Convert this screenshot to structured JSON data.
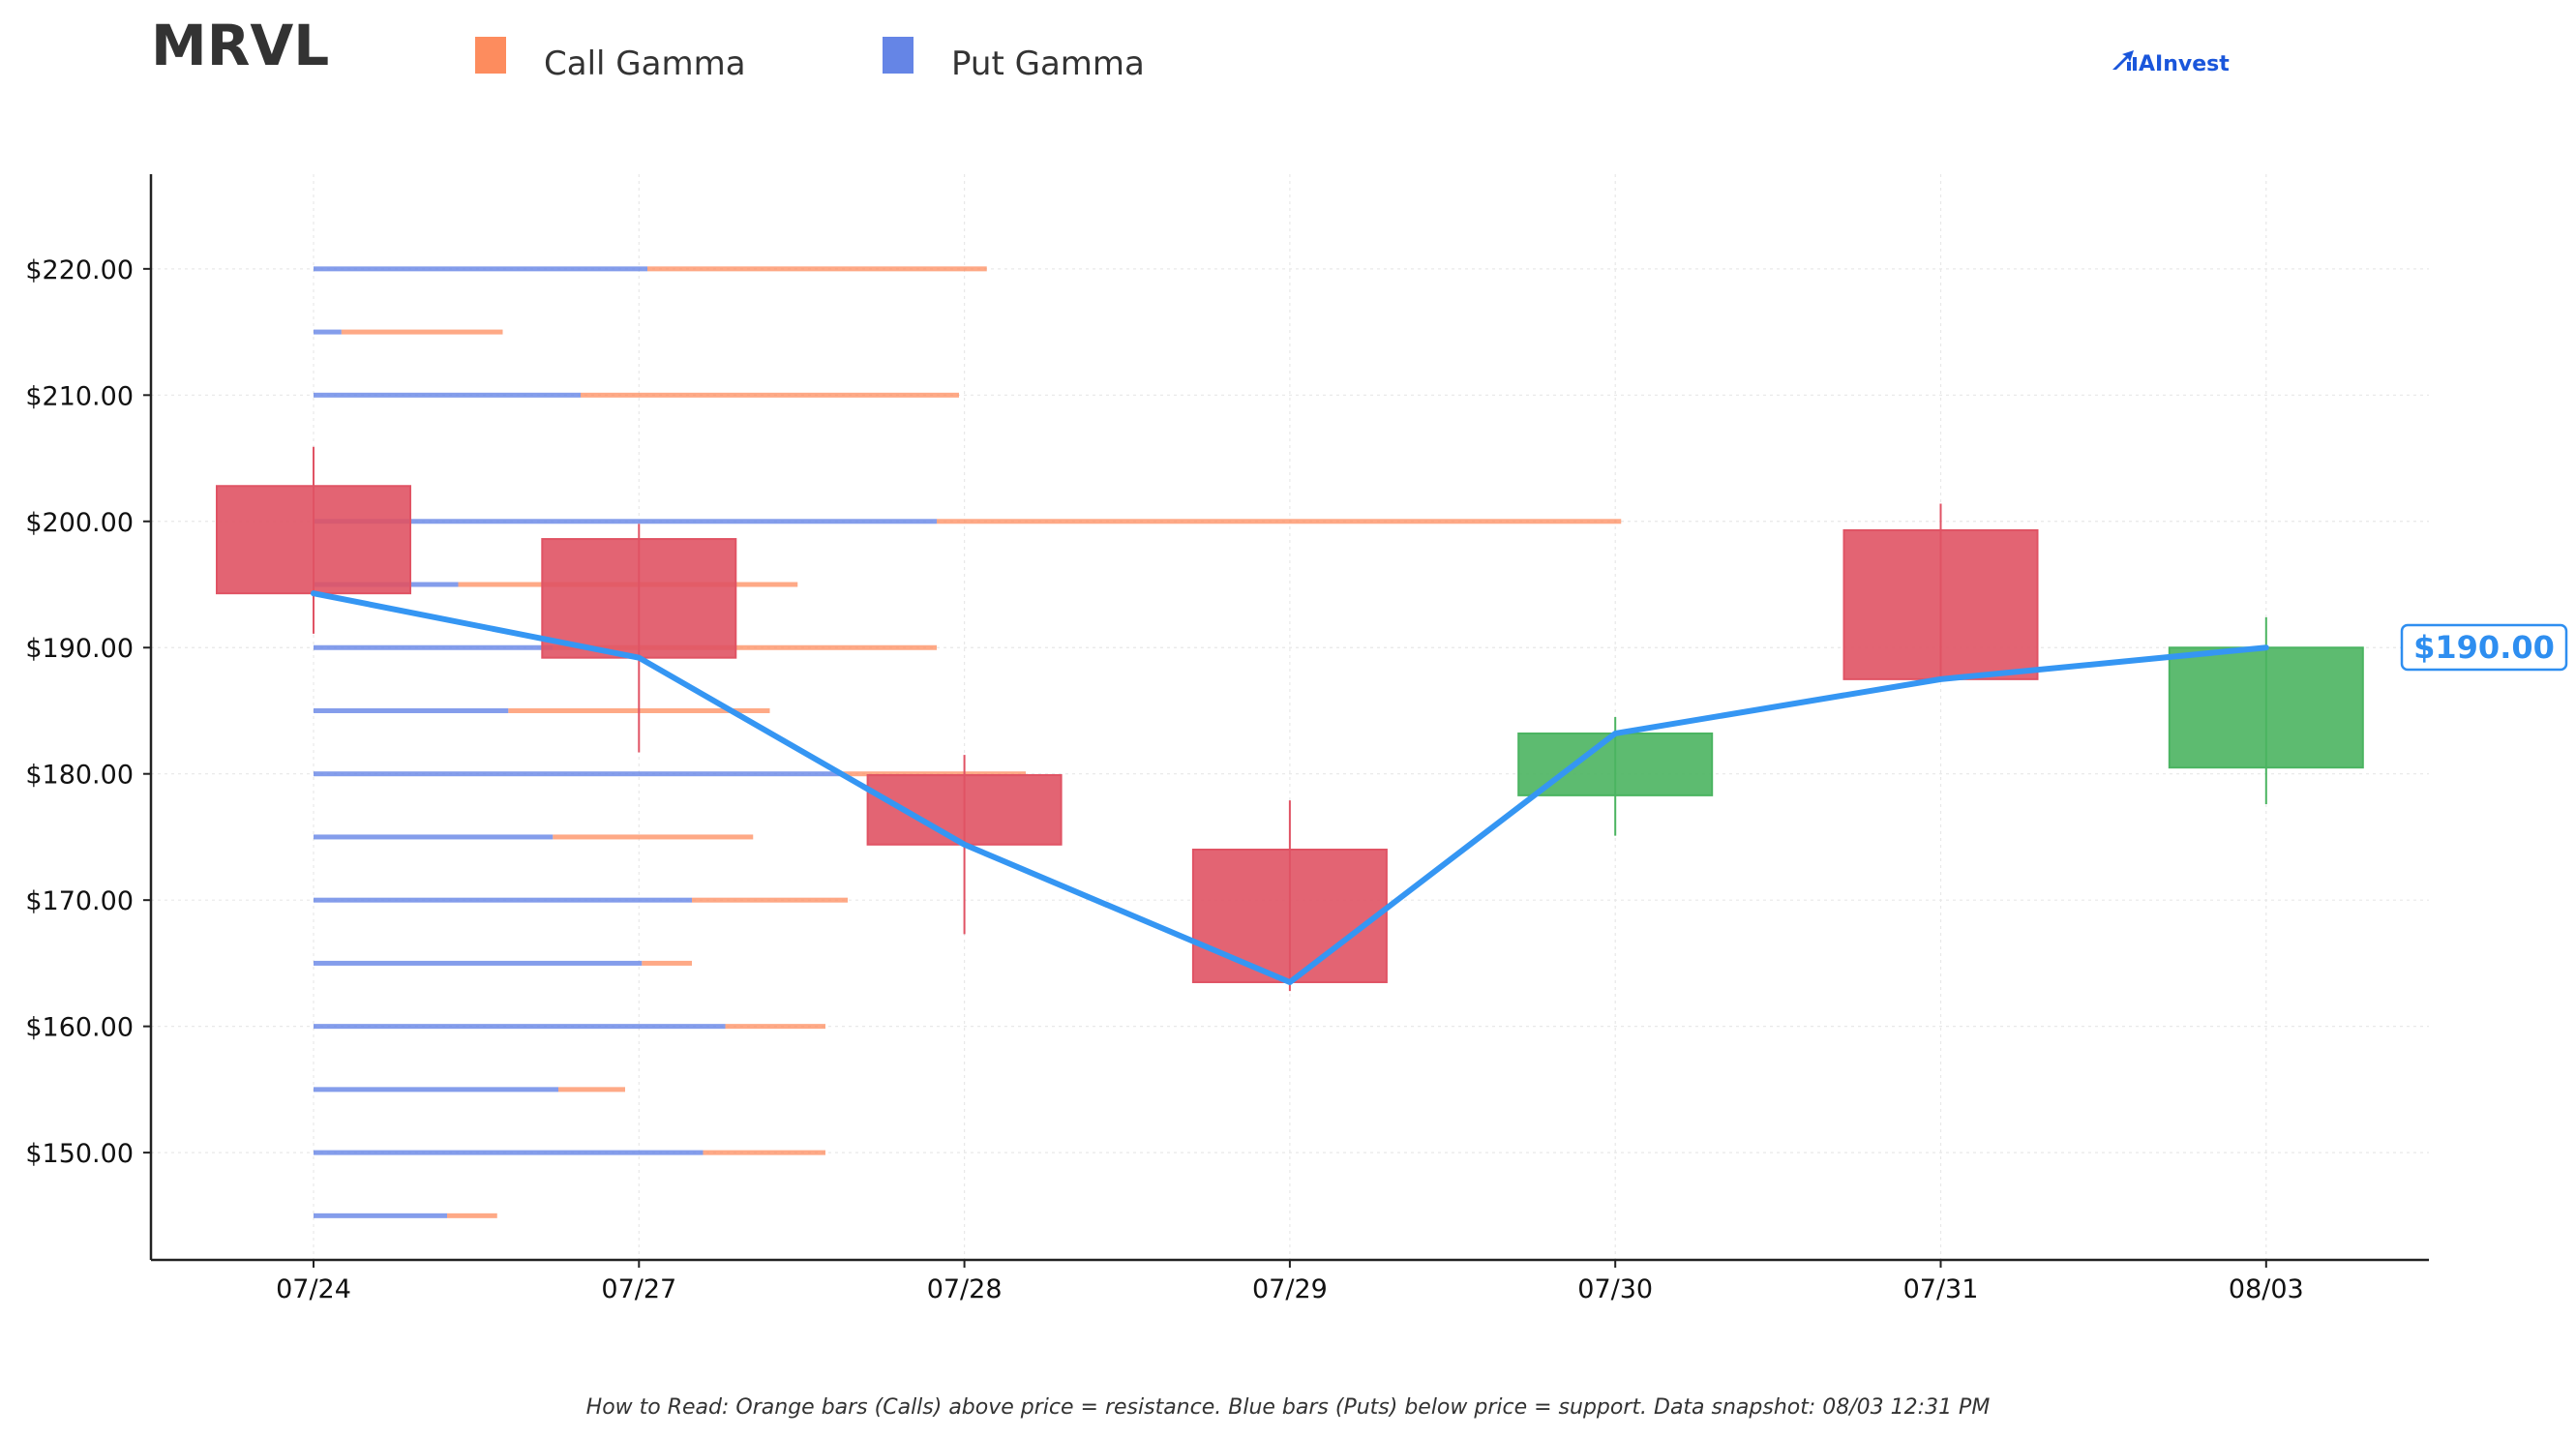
{
  "ticker": "MRVL",
  "legend": [
    {
      "label": "Call Gamma",
      "color": "#fd8c5e"
    },
    {
      "label": "Put Gamma",
      "color": "#6585e6"
    }
  ],
  "brand": {
    "text": "AInvest",
    "icon": "ainvest-logo-icon"
  },
  "footnote": "How to Read: Orange bars (Calls) above price = resistance. Blue bars (Puts) below price = support. Data snapshot: 08/03 12:31 PM",
  "current_price_label": "$190.00",
  "chart_data": {
    "type": "candlestick",
    "categories": [
      "07/24",
      "07/27",
      "07/28",
      "07/29",
      "07/30",
      "07/31",
      "08/03"
    ],
    "y_ticks": [
      150,
      160,
      170,
      180,
      190,
      200,
      210,
      220
    ],
    "y_tick_labels": [
      "$150.00",
      "$160.00",
      "$170.00",
      "$180.00",
      "$190.00",
      "$200.00",
      "$210.00",
      "$220.00"
    ],
    "ylim": [
      141.5,
      227.5
    ],
    "grid": true,
    "candles": [
      {
        "date": "07/24",
        "open": 202.8,
        "close": 194.3,
        "high": 205.9,
        "low": 191.1
      },
      {
        "date": "07/27",
        "open": 198.6,
        "close": 189.2,
        "high": 199.8,
        "low": 181.7
      },
      {
        "date": "07/28",
        "open": 179.9,
        "close": 174.4,
        "high": 181.5,
        "low": 167.3
      },
      {
        "date": "07/29",
        "open": 174.0,
        "close": 163.5,
        "high": 177.9,
        "low": 162.8
      },
      {
        "date": "07/30",
        "open": 178.3,
        "close": 183.2,
        "high": 184.5,
        "low": 175.1
      },
      {
        "date": "07/31",
        "open": 199.3,
        "close": 187.5,
        "high": 201.4,
        "low": 187.4
      },
      {
        "date": "08/03",
        "open": 180.5,
        "close": 190.0,
        "high": 192.4,
        "low": 177.6
      }
    ],
    "price_line": {
      "color": "#3596f3",
      "values": [
        194.3,
        189.2,
        174.4,
        163.5,
        183.2,
        187.5,
        190.0
      ]
    },
    "gamma_levels": {
      "strikes": [
        220,
        215,
        210,
        200,
        195,
        190,
        185,
        180,
        175,
        170,
        165,
        160,
        155,
        150,
        145
      ],
      "put_gamma": [
        3.0,
        0.25,
        2.4,
        5.6,
        1.3,
        2.15,
        1.75,
        4.75,
        2.15,
        3.4,
        2.95,
        3.7,
        2.2,
        3.5,
        1.2
      ],
      "call_gamma": [
        3.05,
        1.45,
        3.4,
        6.15,
        3.05,
        3.45,
        2.35,
        1.65,
        1.8,
        1.4,
        0.45,
        0.9,
        0.6,
        1.1,
        0.45
      ]
    },
    "colors": {
      "down": "#e05364",
      "up": "#4bb461",
      "axis": "#222222",
      "grid": "#e8e8e8"
    }
  }
}
